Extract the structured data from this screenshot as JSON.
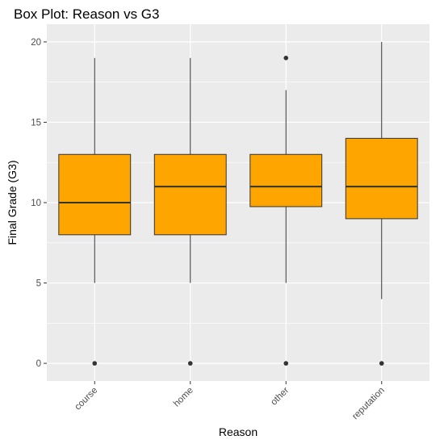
{
  "chart_data": {
    "type": "boxplot",
    "title": "Box Plot: Reason vs G3",
    "xlabel": "Reason",
    "ylabel": "Final Grade (G3)",
    "categories": [
      "course",
      "home",
      "other",
      "reputation"
    ],
    "boxes": [
      {
        "category": "course",
        "whisker_low": 5,
        "q1": 8,
        "median": 10,
        "q3": 13,
        "whisker_high": 19,
        "outliers": [
          0
        ]
      },
      {
        "category": "home",
        "whisker_low": 5,
        "q1": 8,
        "median": 11,
        "q3": 13,
        "whisker_high": 19,
        "outliers": [
          0
        ]
      },
      {
        "category": "other",
        "whisker_low": 5,
        "q1": 9.75,
        "median": 11,
        "q3": 13,
        "whisker_high": 17,
        "outliers": [
          0,
          19
        ]
      },
      {
        "category": "reputation",
        "whisker_low": 4,
        "q1": 9,
        "median": 11,
        "q3": 14,
        "whisker_high": 20,
        "outliers": [
          0
        ]
      }
    ],
    "ylim": [
      -1.1,
      21.1
    ],
    "yticks": [
      0,
      5,
      10,
      15,
      20
    ],
    "grid": true,
    "colors": {
      "box_fill": "#FFA500",
      "box_stroke": "#333333",
      "panel_background": "#EBEBEB",
      "grid": "#FFFFFF",
      "outlier": "#333333"
    }
  }
}
